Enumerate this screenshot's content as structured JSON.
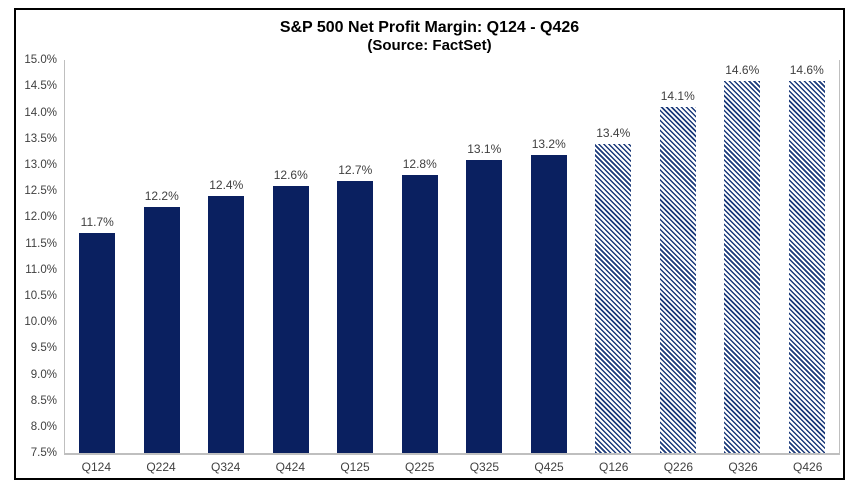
{
  "chart_data": {
    "type": "bar",
    "title": "S&P 500 Net Profit Margin: Q124 - Q426",
    "subtitle": "(Source: FactSet)",
    "categories": [
      "Q124",
      "Q224",
      "Q324",
      "Q424",
      "Q125",
      "Q225",
      "Q325",
      "Q425",
      "Q126",
      "Q226",
      "Q326",
      "Q426"
    ],
    "values": [
      11.7,
      12.2,
      12.4,
      12.6,
      12.7,
      12.8,
      13.1,
      13.2,
      13.4,
      14.1,
      14.6,
      14.6
    ],
    "data_labels": [
      "11.7%",
      "12.2%",
      "12.4%",
      "12.6%",
      "12.7%",
      "12.8%",
      "13.1%",
      "13.2%",
      "13.4%",
      "14.1%",
      "14.6%",
      "14.6%"
    ],
    "estimate_flags": [
      false,
      false,
      false,
      false,
      false,
      false,
      false,
      false,
      true,
      true,
      true,
      true
    ],
    "ylim": [
      7.5,
      15.0
    ],
    "ytick_step": 0.5,
    "yticks": [
      "15.0%",
      "14.5%",
      "14.0%",
      "13.5%",
      "13.0%",
      "12.5%",
      "12.0%",
      "11.5%",
      "11.0%",
      "10.5%",
      "10.0%",
      "9.5%",
      "9.0%",
      "8.5%",
      "8.0%",
      "7.5%"
    ],
    "xlabel": "",
    "ylabel": "",
    "grid": "off",
    "legend": "none",
    "colors": {
      "bar_solid": "#0A2060",
      "bar_hatch_stripe": "#1B3A7A",
      "label_text": "#404040",
      "axis_line": "#BFBFBF",
      "frame_border": "#000000",
      "background": "#FFFFFF"
    }
  }
}
